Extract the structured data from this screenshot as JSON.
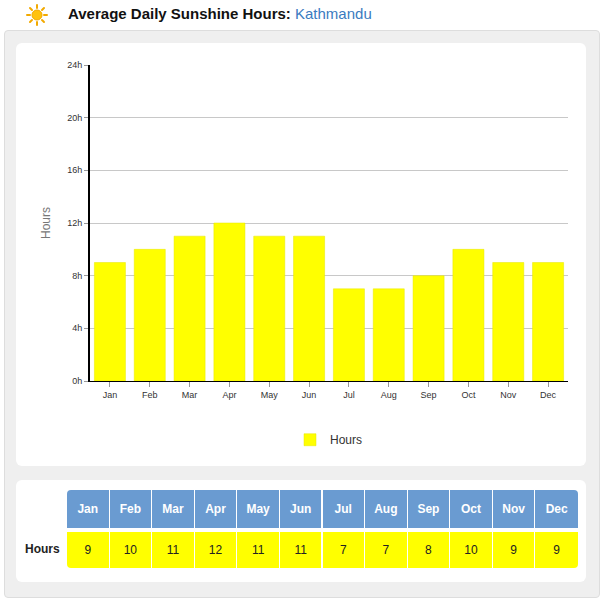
{
  "header": {
    "title": "Average Daily Sunshine Hours:",
    "location": "Kathmandu"
  },
  "chart_data": {
    "type": "bar",
    "categories": [
      "Jan",
      "Feb",
      "Mar",
      "Apr",
      "May",
      "Jun",
      "Jul",
      "Aug",
      "Sep",
      "Oct",
      "Nov",
      "Dec"
    ],
    "series": [
      {
        "name": "Hours",
        "color": "#ffff00",
        "values": [
          9,
          10,
          11,
          12,
          11,
          11,
          7,
          7,
          8,
          10,
          9,
          9
        ]
      }
    ],
    "y_label": "Hours",
    "ylim": [
      0,
      24
    ],
    "yticks": [
      {
        "value": 0,
        "label": "0h"
      },
      {
        "value": 4,
        "label": "4h"
      },
      {
        "value": 8,
        "label": "8h"
      },
      {
        "value": 12,
        "label": "12h"
      },
      {
        "value": 16,
        "label": "16h"
      },
      {
        "value": 20,
        "label": "20h"
      },
      {
        "value": 24,
        "label": "24h"
      }
    ],
    "grid": true,
    "legend": "bottom"
  },
  "table": {
    "row_label": "Hours",
    "columns": [
      "Jan",
      "Feb",
      "Mar",
      "Apr",
      "May",
      "Jun",
      "Jul",
      "Aug",
      "Sep",
      "Oct",
      "Nov",
      "Dec"
    ],
    "values": [
      9,
      10,
      11,
      12,
      11,
      11,
      7,
      7,
      8,
      10,
      9,
      9
    ]
  }
}
